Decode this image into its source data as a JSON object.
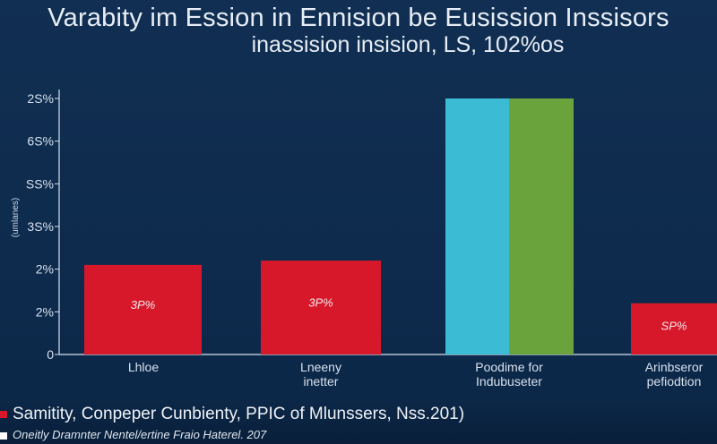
{
  "header": {
    "title": "Varabity im Ession in Ennision be Eusission Inssisors",
    "subtitle": "inassision insision, LS, 102%os"
  },
  "footer": {
    "line1": "Samitity, Conpeper Cunbienty, PPIC of  Mlunssers, Nss.201)",
    "line2": "Oneitly Dramnter Nentel/ertine Fraio Haterel. 207",
    "marker1_color": "#d7182a",
    "marker2_color": "#ffffff"
  },
  "chart_data": {
    "type": "bar",
    "title": "Varabity im Ession in Ennision be Eusission Inssisors",
    "subtitle": "inassision insision, LS, 102%os",
    "ylabel": "(umlanes)",
    "ytick_labels": [
      "0",
      "2%",
      "2%",
      "3S%",
      "SS%",
      "6S%",
      "2S%"
    ],
    "ylim": [
      0,
      6
    ],
    "grid": false,
    "categories": [
      {
        "label_lines": [
          "Lhloe"
        ]
      },
      {
        "label_lines": [
          "Lneeny",
          "inetter"
        ]
      },
      {
        "label_lines": [
          "Poodime for",
          "Indubuseter"
        ]
      },
      {
        "label_lines": [
          "Arinbseror",
          "pefiodtion"
        ]
      }
    ],
    "bars": [
      {
        "category": 0,
        "value": 2.1,
        "color": "#d7182a",
        "label": "3P%"
      },
      {
        "category": 1,
        "value": 2.2,
        "color": "#d7182a",
        "label": "3P%"
      },
      {
        "category": 2,
        "value": 6.0,
        "color": "#3bbcd4",
        "label": ""
      },
      {
        "category": 2,
        "value": 6.0,
        "color": "#6aa23c",
        "label": ""
      },
      {
        "category": 3,
        "value": 1.2,
        "color": "#d7182a",
        "label": "SP%"
      }
    ],
    "colors": {
      "axis": "#d7e1ee",
      "text": "#d7e1ee"
    }
  }
}
